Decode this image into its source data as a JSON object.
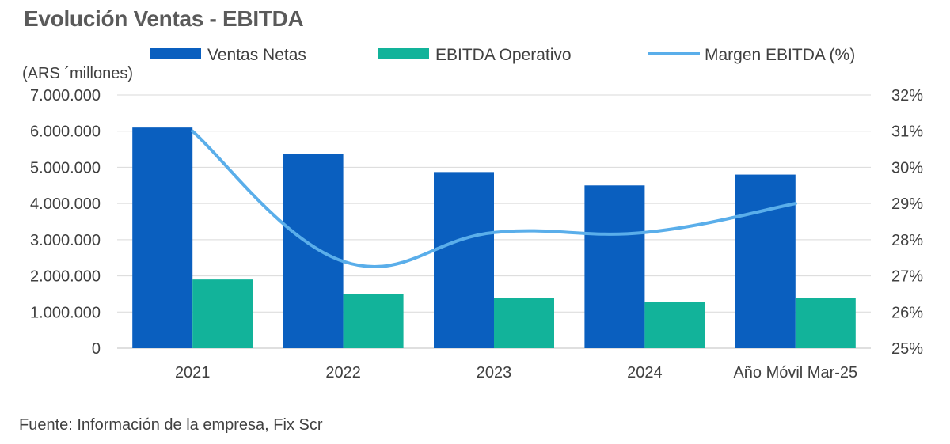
{
  "chart_data": {
    "type": "bar",
    "title": "Evolución Ventas - EBITDA",
    "unit_label": "(ARS ´millones)",
    "categories": [
      "2021",
      "2022",
      "2023",
      "2024",
      "Año Móvil Mar-25"
    ],
    "series": [
      {
        "name": "Ventas Netas",
        "type": "bar",
        "axis": "left",
        "color": "#0a5fbf",
        "values": [
          6100000,
          5370000,
          4870000,
          4500000,
          4800000
        ]
      },
      {
        "name": "EBITDA Operativo",
        "type": "bar",
        "axis": "left",
        "color": "#12b39a",
        "values": [
          1900000,
          1490000,
          1380000,
          1280000,
          1390000
        ]
      },
      {
        "name": "Margen EBITDA (%)",
        "type": "line",
        "axis": "right",
        "color": "#5aaeea",
        "values": [
          31.0,
          27.4,
          28.2,
          28.2,
          29.0
        ]
      }
    ],
    "y_left": {
      "min": 0,
      "max": 7000000,
      "step": 1000000,
      "tick_labels": [
        "0",
        "1.000.000",
        "2.000.000",
        "3.000.000",
        "4.000.000",
        "5.000.000",
        "6.000.000",
        "7.000.000"
      ]
    },
    "y_right": {
      "min": 25,
      "max": 32,
      "step": 1,
      "tick_labels": [
        "25%",
        "26%",
        "27%",
        "28%",
        "29%",
        "30%",
        "31%",
        "32%"
      ]
    },
    "grid": true,
    "legend_position": "top"
  },
  "footer": {
    "source": "Fuente: Información de la empresa, Fix Scr"
  }
}
